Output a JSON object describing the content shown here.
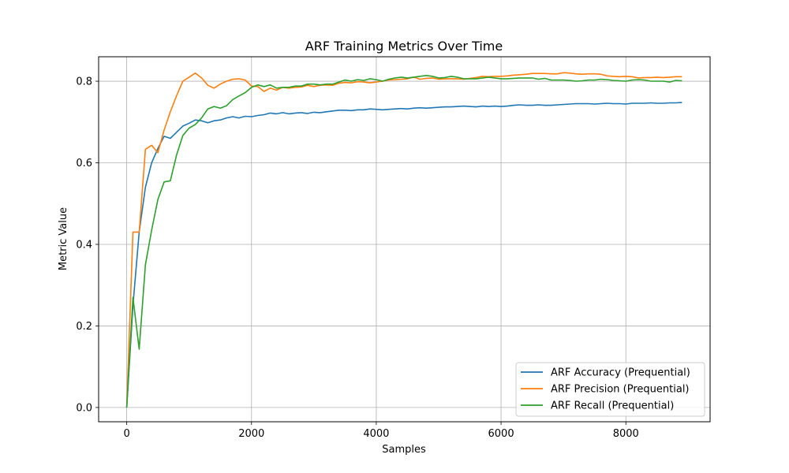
{
  "chart_data": {
    "type": "line",
    "title": "ARF Training Metrics Over Time",
    "xlabel": "Samples",
    "ylabel": "Metric Value",
    "xlim": [
      -450,
      9350
    ],
    "ylim": [
      -0.035,
      0.86
    ],
    "xticks": [
      0,
      2000,
      4000,
      6000,
      8000
    ],
    "yticks": [
      0.0,
      0.2,
      0.4,
      0.6,
      0.8
    ],
    "xtick_labels": [
      "0",
      "2000",
      "4000",
      "6000",
      "8000"
    ],
    "ytick_labels": [
      "0.0",
      "0.2",
      "0.4",
      "0.6",
      "0.8"
    ],
    "grid": true,
    "legend_position": "lower-right",
    "x": [
      0,
      100,
      200,
      300,
      400,
      500,
      600,
      700,
      800,
      900,
      1000,
      1100,
      1200,
      1300,
      1400,
      1500,
      1600,
      1700,
      1800,
      1900,
      2000,
      2100,
      2200,
      2300,
      2400,
      2500,
      2600,
      2700,
      2800,
      2900,
      3000,
      3100,
      3200,
      3300,
      3400,
      3500,
      3600,
      3700,
      3800,
      3900,
      4000,
      4100,
      4200,
      4300,
      4400,
      4500,
      4600,
      4700,
      4800,
      4900,
      5000,
      5100,
      5200,
      5300,
      5400,
      5500,
      5600,
      5700,
      5800,
      5900,
      6000,
      6100,
      6200,
      6300,
      6400,
      6500,
      6600,
      6700,
      6800,
      6900,
      7000,
      7100,
      7200,
      7300,
      7400,
      7500,
      7600,
      7700,
      7800,
      7900,
      8000,
      8100,
      8200,
      8300,
      8400,
      8500,
      8600,
      8700,
      8800,
      8900
    ],
    "series": [
      {
        "name": "ARF Accuracy (Prequential)",
        "color": "#1f77b4",
        "values": [
          0.0,
          0.25,
          0.43,
          0.54,
          0.6,
          0.635,
          0.665,
          0.66,
          0.675,
          0.69,
          0.697,
          0.705,
          0.703,
          0.698,
          0.703,
          0.705,
          0.71,
          0.713,
          0.71,
          0.714,
          0.713,
          0.716,
          0.718,
          0.722,
          0.72,
          0.723,
          0.72,
          0.722,
          0.723,
          0.721,
          0.724,
          0.723,
          0.725,
          0.727,
          0.729,
          0.729,
          0.728,
          0.73,
          0.73,
          0.732,
          0.731,
          0.73,
          0.731,
          0.732,
          0.733,
          0.732,
          0.734,
          0.735,
          0.734,
          0.735,
          0.736,
          0.737,
          0.737,
          0.738,
          0.739,
          0.738,
          0.737,
          0.739,
          0.738,
          0.739,
          0.738,
          0.739,
          0.741,
          0.742,
          0.741,
          0.741,
          0.742,
          0.741,
          0.741,
          0.742,
          0.743,
          0.744,
          0.745,
          0.745,
          0.745,
          0.744,
          0.745,
          0.746,
          0.745,
          0.745,
          0.744,
          0.746,
          0.746,
          0.746,
          0.747,
          0.746,
          0.746,
          0.747,
          0.747,
          0.748
        ]
      },
      {
        "name": "ARF Precision (Prequential)",
        "color": "#ff7f0e",
        "values": [
          0.0,
          0.43,
          0.43,
          0.633,
          0.643,
          0.625,
          0.68,
          0.725,
          0.765,
          0.8,
          0.81,
          0.82,
          0.808,
          0.79,
          0.783,
          0.793,
          0.8,
          0.805,
          0.806,
          0.803,
          0.788,
          0.787,
          0.775,
          0.783,
          0.778,
          0.785,
          0.783,
          0.785,
          0.786,
          0.79,
          0.787,
          0.79,
          0.791,
          0.79,
          0.795,
          0.797,
          0.796,
          0.799,
          0.798,
          0.796,
          0.798,
          0.8,
          0.803,
          0.804,
          0.805,
          0.806,
          0.81,
          0.805,
          0.807,
          0.808,
          0.805,
          0.806,
          0.806,
          0.806,
          0.805,
          0.807,
          0.809,
          0.812,
          0.811,
          0.812,
          0.812,
          0.813,
          0.815,
          0.816,
          0.817,
          0.819,
          0.819,
          0.819,
          0.818,
          0.818,
          0.821,
          0.82,
          0.818,
          0.817,
          0.818,
          0.818,
          0.817,
          0.813,
          0.812,
          0.811,
          0.812,
          0.811,
          0.808,
          0.809,
          0.809,
          0.81,
          0.809,
          0.81,
          0.811,
          0.811
        ]
      },
      {
        "name": "ARF Recall (Prequential)",
        "color": "#2ca02c",
        "values": [
          0.0,
          0.27,
          0.143,
          0.35,
          0.435,
          0.51,
          0.553,
          0.556,
          0.62,
          0.667,
          0.685,
          0.694,
          0.71,
          0.732,
          0.738,
          0.734,
          0.74,
          0.755,
          0.764,
          0.772,
          0.785,
          0.791,
          0.787,
          0.791,
          0.783,
          0.785,
          0.785,
          0.788,
          0.788,
          0.793,
          0.793,
          0.791,
          0.793,
          0.793,
          0.798,
          0.803,
          0.8,
          0.804,
          0.802,
          0.806,
          0.804,
          0.8,
          0.805,
          0.808,
          0.81,
          0.808,
          0.81,
          0.812,
          0.814,
          0.812,
          0.808,
          0.809,
          0.812,
          0.81,
          0.806,
          0.806,
          0.806,
          0.808,
          0.81,
          0.808,
          0.806,
          0.806,
          0.807,
          0.808,
          0.808,
          0.808,
          0.805,
          0.807,
          0.803,
          0.803,
          0.803,
          0.802,
          0.8,
          0.801,
          0.803,
          0.803,
          0.805,
          0.804,
          0.802,
          0.801,
          0.8,
          0.803,
          0.804,
          0.803,
          0.8,
          0.8,
          0.8,
          0.798,
          0.802,
          0.801
        ]
      }
    ]
  }
}
